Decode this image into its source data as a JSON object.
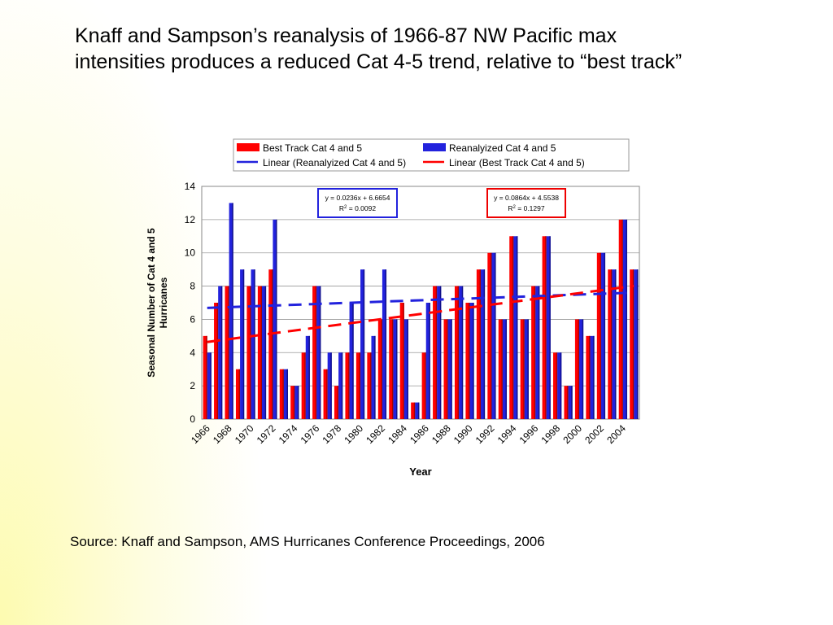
{
  "slide": {
    "title_line1": "Knaff and Sampson’s reanalysis of 1966-87 NW Pacific max",
    "title_line2": "intensities produces a reduced Cat 4-5 trend, relative to “best track”",
    "source": "Source:  Knaff and Sampson, AMS Hurricanes Conference Proceedings, 2006"
  },
  "chart_data": {
    "type": "bar",
    "xlabel": "Year",
    "ylabel": "Seasonal Number of Cat 4 and 5 Hurricanes",
    "ylim": [
      0,
      14
    ],
    "yticks": [
      0,
      2,
      4,
      6,
      8,
      10,
      12,
      14
    ],
    "grid": true,
    "legend_position": "top",
    "categories": [
      "1966",
      "1967",
      "1968",
      "1969",
      "1970",
      "1971",
      "1972",
      "1973",
      "1974",
      "1975",
      "1976",
      "1977",
      "1978",
      "1979",
      "1980",
      "1981",
      "1982",
      "1983",
      "1984",
      "1985",
      "1986",
      "1987",
      "1988",
      "1989",
      "1990",
      "1991",
      "1992",
      "1993",
      "1994",
      "1995",
      "1996",
      "1997",
      "1998",
      "1999",
      "2000",
      "2001",
      "2002",
      "2003",
      "2004",
      "2005"
    ],
    "tick_labels": [
      "1966",
      "1968",
      "1970",
      "1972",
      "1974",
      "1976",
      "1978",
      "1980",
      "1982",
      "1984",
      "1986",
      "1988",
      "1990",
      "1992",
      "1994",
      "1996",
      "1998",
      "2000",
      "2002",
      "2004"
    ],
    "series": [
      {
        "name": "Best Track Cat 4 and 5",
        "color": "#ff0000",
        "values": [
          5,
          7,
          8,
          3,
          8,
          8,
          9,
          3,
          2,
          4,
          8,
          3,
          2,
          4,
          4,
          4,
          6,
          6,
          7,
          1,
          4,
          8,
          6,
          8,
          7,
          9,
          10,
          6,
          11,
          6,
          8,
          11,
          4,
          2,
          6,
          5,
          10,
          9,
          12,
          9
        ]
      },
      {
        "name": "Reanalyized Cat 4 and 5",
        "color": "#2222dd",
        "values": [
          4,
          8,
          13,
          9,
          9,
          8,
          12,
          3,
          2,
          5,
          8,
          4,
          4,
          7,
          9,
          5,
          9,
          6,
          6,
          1,
          7,
          8,
          6,
          8,
          7,
          9,
          10,
          6,
          11,
          6,
          8,
          11,
          4,
          2,
          6,
          5,
          10,
          9,
          12,
          9
        ]
      }
    ],
    "trendlines": [
      {
        "name": "Linear (Reanalyized Cat 4 and 5)",
        "color": "#2222dd",
        "slope": 0.0236,
        "intercept": 6.6654,
        "equation": "y = 0.0236x + 6.6654",
        "r2_label": "R",
        "r2_value": " = 0.0092"
      },
      {
        "name": "Linear (Best Track Cat 4 and 5)",
        "color": "#ff0000",
        "slope": 0.0864,
        "intercept": 4.5538,
        "equation": "y = 0.0864x + 4.5538",
        "r2_label": "R",
        "r2_value": " = 0.1297"
      }
    ]
  }
}
